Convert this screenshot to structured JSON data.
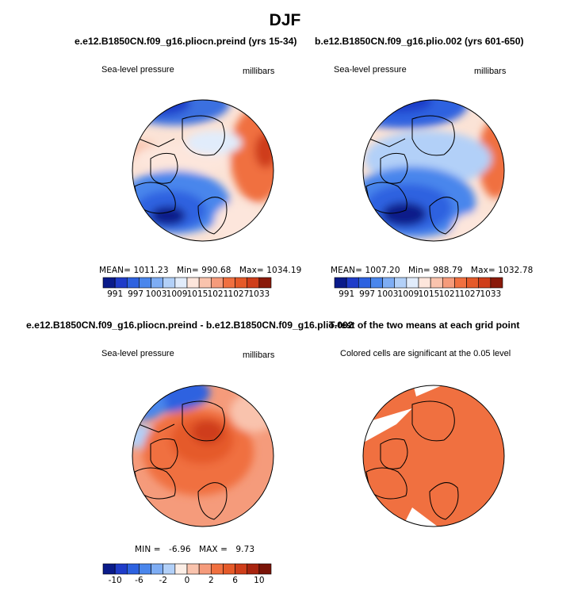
{
  "page_title": "DJF",
  "chart_data": [
    {
      "type": "heatmap",
      "title": "e.e12.B1850CN.f09_g16.pliocn.preind (yrs 15-34)",
      "left_label": "Sea-level pressure",
      "right_label": "millibars",
      "stats": {
        "mean_label": "MEAN=",
        "mean": "1011.23",
        "min_label": "Min=",
        "min": "990.68",
        "max_label": "Max=",
        "max": "1034.19"
      },
      "colorbar": {
        "ticks": [
          "991",
          "997",
          "1003",
          "1009",
          "1015",
          "1021",
          "1027",
          "1033"
        ],
        "colors": [
          "#0a1b8a",
          "#1f3cc9",
          "#2d62e0",
          "#4a86ec",
          "#7eadf4",
          "#b2d0f8",
          "#e1ecfb",
          "#fde6dc",
          "#f9c3ad",
          "#f59b7b",
          "#f07040",
          "#e55a29",
          "#cf3e1a",
          "#8a1a0a"
        ]
      }
    },
    {
      "type": "heatmap",
      "title": "b.e12.B1850CN.f09_g16.plio.002 (yrs 601-650)",
      "left_label": "Sea-level pressure",
      "right_label": "millibars",
      "stats": {
        "mean_label": "MEAN=",
        "mean": "1007.20",
        "min_label": "Min=",
        "min": "988.79",
        "max_label": "Max=",
        "max": "1032.78"
      },
      "colorbar": {
        "ticks": [
          "991",
          "997",
          "1003",
          "1009",
          "1015",
          "1021",
          "1027",
          "1033"
        ],
        "colors": [
          "#0a1b8a",
          "#1f3cc9",
          "#2d62e0",
          "#4a86ec",
          "#7eadf4",
          "#b2d0f8",
          "#e1ecfb",
          "#fde6dc",
          "#f9c3ad",
          "#f59b7b",
          "#f07040",
          "#e55a29",
          "#cf3e1a",
          "#8a1a0a"
        ]
      }
    },
    {
      "type": "heatmap",
      "title": "e.e12.B1850CN.f09_g16.pliocn.preind - b.e12.B1850CN.f09_g16.plio.002",
      "left_label": "Sea-level pressure",
      "right_label": "millibars",
      "stats": {
        "min_label": "MIN =",
        "min": "-6.96",
        "max_label": "MAX =",
        "max": "9.73"
      },
      "colorbar": {
        "ticks": [
          "-10",
          "-6",
          "-2",
          "0",
          "2",
          "6",
          "10"
        ],
        "colors": [
          "#0a1b8a",
          "#1f3cc9",
          "#2d62e0",
          "#4a86ec",
          "#7eadf4",
          "#b2d0f8",
          "#fbeee6",
          "#f9c3ad",
          "#f59b7b",
          "#f07040",
          "#e55a29",
          "#cf3e1a",
          "#a8240f",
          "#7a1408"
        ]
      }
    },
    {
      "type": "heatmap",
      "title": "T-test of the two means at each grid point",
      "left_label": "Colored cells are significant at the 0.05 level",
      "significant_color": "#f07040"
    }
  ]
}
